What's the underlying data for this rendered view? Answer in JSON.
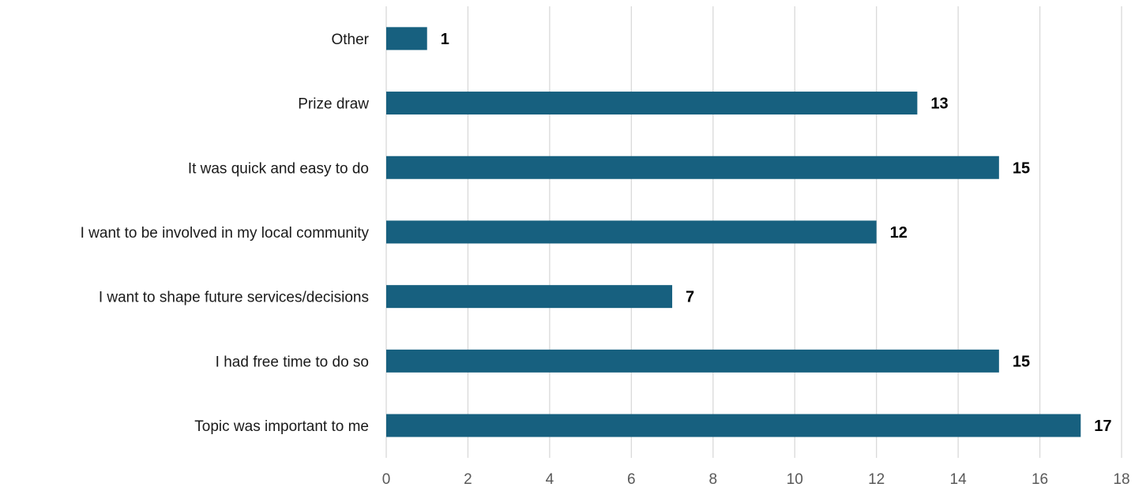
{
  "chart_data": {
    "type": "bar",
    "orientation": "horizontal",
    "categories": [
      "Other",
      "Prize draw",
      "It was quick and easy to do",
      "I want to be involved in my local community",
      "I want to shape future services/decisions",
      "I had free time to do so",
      "Topic was important to me"
    ],
    "values": [
      1,
      13,
      15,
      12,
      7,
      15,
      17
    ],
    "title": "",
    "xlabel": "",
    "ylabel": "",
    "xlim": [
      0,
      18
    ],
    "x_ticks": [
      0,
      2,
      4,
      6,
      8,
      10,
      12,
      14,
      16,
      18
    ],
    "grid": "vertical",
    "legend": "none",
    "data_labels": true,
    "colors": {
      "bar": "#17607f",
      "grid": "#d9d9d9",
      "tick_text": "#595959",
      "category_text": "#1a1a1a",
      "value_text": "#000000"
    }
  }
}
